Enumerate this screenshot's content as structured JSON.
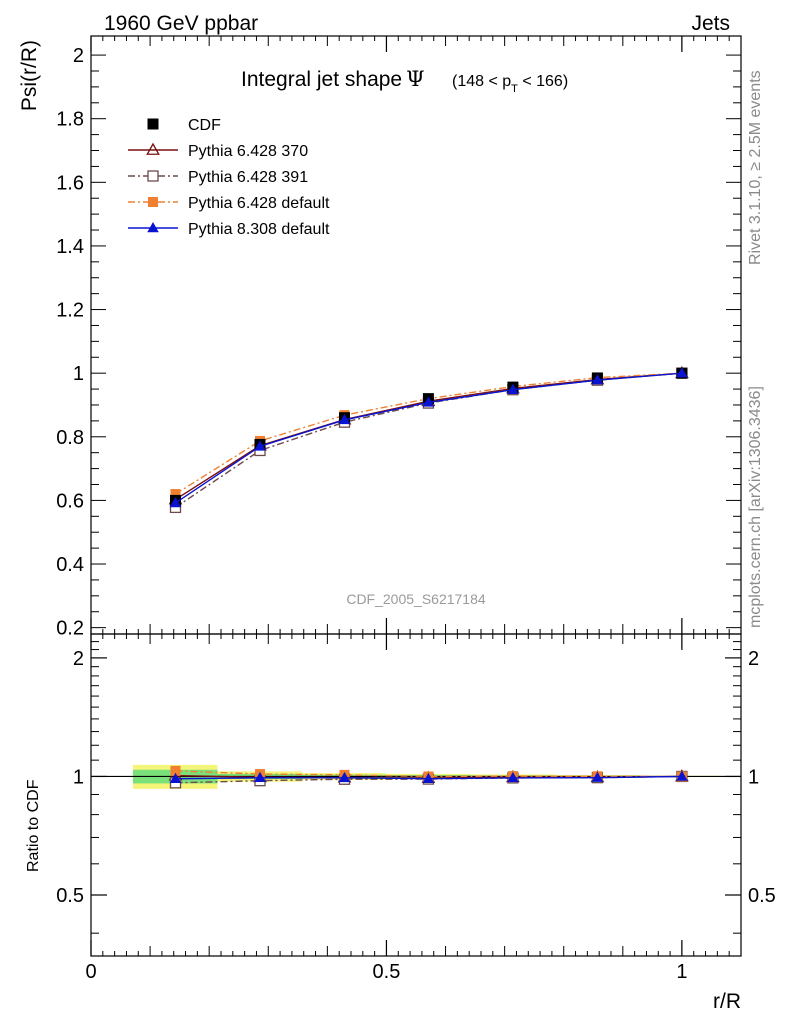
{
  "header": {
    "left": "1960 GeV ppbar",
    "right": "Jets"
  },
  "side_texts": {
    "rivet": "Rivet 3.1.10, ≥ 2.5M events",
    "mcplots": "mcplots.cern.ch [arXiv:1306.3436]"
  },
  "chart_data": {
    "type": "line",
    "title": "Integral jet shape",
    "title_symbol": "Ψ",
    "title_range": "(148 < p",
    "title_range_sub": "T",
    "title_range_end": " < 166)",
    "watermark": "CDF_2005_S6217184",
    "xlabel": "r/R",
    "ylabel": "Psi(r/R)",
    "ratio_ylabel": "Ratio to CDF",
    "xlim": [
      0,
      1.1
    ],
    "ylim": [
      0.18,
      2.06
    ],
    "ratio_ylim": [
      0.35,
      2.3
    ],
    "x_ticks": [
      "0",
      "0.5",
      "1"
    ],
    "y_ticks": [
      "0.2",
      "0.4",
      "0.6",
      "0.8",
      "1",
      "1.2",
      "1.4",
      "1.6",
      "1.8",
      "2"
    ],
    "ratio_ticks": [
      "0.5",
      "1",
      "2"
    ],
    "x": [
      0.143,
      0.286,
      0.429,
      0.571,
      0.714,
      0.857,
      1.0
    ],
    "series": [
      {
        "name": "CDF",
        "color": "#000000",
        "marker": "square-filled",
        "dash": "none",
        "values": [
          0.6,
          0.776,
          0.86,
          0.92,
          0.956,
          0.985,
          1.0
        ]
      },
      {
        "name": "Pythia 6.428 370",
        "color": "#7a1010",
        "marker": "triangle-open",
        "dash": "solid",
        "values": [
          0.603,
          0.772,
          0.854,
          0.912,
          0.952,
          0.98,
          1.0
        ]
      },
      {
        "name": "Pythia 6.428 391",
        "color": "#6e4a4a",
        "marker": "square-open",
        "dash": "dashdot",
        "values": [
          0.578,
          0.757,
          0.846,
          0.906,
          0.948,
          0.978,
          1.0
        ]
      },
      {
        "name": "Pythia 6.428 default",
        "color": "#f08030",
        "marker": "square-filled",
        "dash": "dashdot",
        "values": [
          0.62,
          0.787,
          0.868,
          0.92,
          0.958,
          0.986,
          1.0
        ]
      },
      {
        "name": "Pythia 8.308 default",
        "color": "#0a14d0",
        "marker": "triangle-filled",
        "dash": "solid",
        "values": [
          0.592,
          0.77,
          0.853,
          0.908,
          0.948,
          0.978,
          1.0
        ]
      }
    ],
    "ratio_band": {
      "x_edges": [
        0.071,
        0.214,
        0.357,
        0.5,
        0.643,
        0.786,
        0.929,
        1.07
      ],
      "outer_half": [
        0.07,
        0.03,
        0.02,
        0.015,
        0.012,
        0.008,
        0.004
      ],
      "inner_half": [
        0.04,
        0.015,
        0.01,
        0.008,
        0.006,
        0.004,
        0.002
      ],
      "outer_color": "#f5f57a",
      "inner_color": "#7ae07a"
    },
    "legend_placement": "top-left"
  }
}
